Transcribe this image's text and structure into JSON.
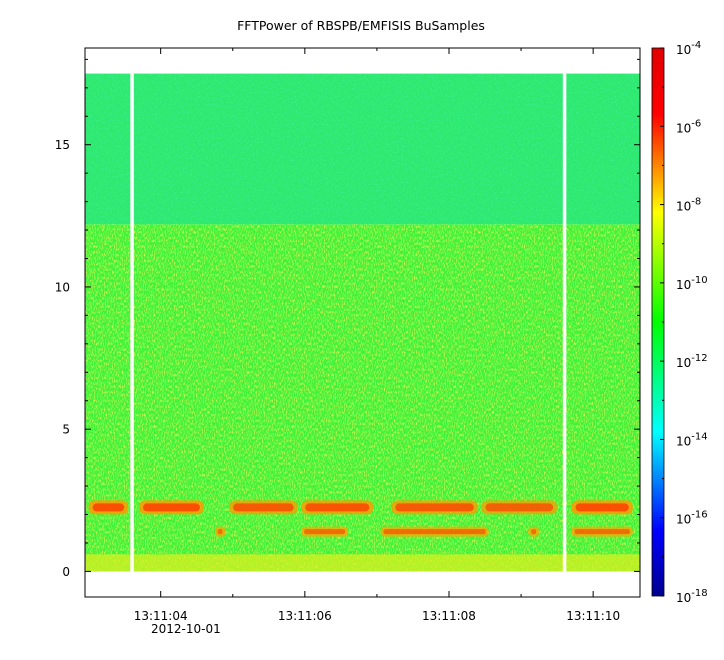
{
  "chart_data": {
    "type": "heatmap",
    "title": "FFTPower of RBSPB/EMFISIS  BuSamples",
    "xlabel": "",
    "ylabel": "",
    "x_tick_labels": [
      "13:11:04",
      "13:11:06",
      "13:11:08",
      "13:11:10"
    ],
    "x_tick_values_s": [
      4,
      6,
      8,
      10
    ],
    "x_date_label": "2012-10-01",
    "xlim_s": [
      2.95,
      10.65
    ],
    "y_ticks": [
      0,
      5,
      10,
      15
    ],
    "ylim": [
      -0.9,
      18.4
    ],
    "data_y_extent": [
      0,
      17.5
    ],
    "gaps_x_s": [
      3.6,
      9.6
    ],
    "colorbar": {
      "scale": "log",
      "range_exponents": [
        -18,
        -4
      ],
      "tick_exponents": [
        -4,
        -6,
        -8,
        -10,
        -12,
        -14,
        -16,
        -18
      ],
      "tick_labels": [
        "10",
        "10",
        "10",
        "10",
        "10",
        "10",
        "10",
        "10"
      ],
      "tick_superscripts": [
        "-4",
        "-6",
        "-8",
        "-10",
        "-12",
        "-14",
        "-16",
        "-18"
      ],
      "colors": [
        "#00008f",
        "#0000ff",
        "#00ffff",
        "#00ff00",
        "#ffff00",
        "#ff0000",
        "#e00000"
      ]
    },
    "features": [
      {
        "name": "background",
        "y_range": [
          0,
          12.2
        ],
        "log_level": -10.2
      },
      {
        "name": "upper band",
        "y_range": [
          12.2,
          17.5
        ],
        "log_level": -11.0
      },
      {
        "name": "low-frequency rise",
        "y_range": [
          0,
          0.6
        ],
        "log_level": -9.0
      },
      {
        "name": "primary emission band",
        "y_center": 2.25,
        "log_level": -7.0
      },
      {
        "name": "secondary emission band",
        "y_center": 1.4,
        "log_level": -7.8
      }
    ],
    "grid": false,
    "legend": "colorbar-right"
  }
}
